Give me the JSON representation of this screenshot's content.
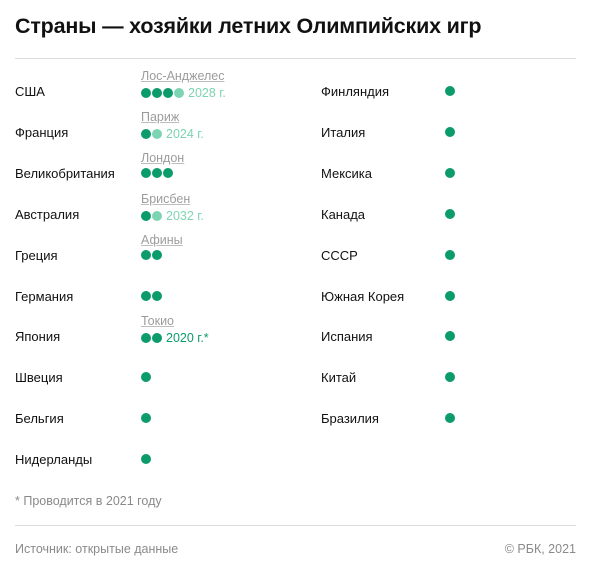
{
  "colors": {
    "past_dot": "#0c9b6a",
    "future_dot": "#7dd4b2",
    "city_text": "#9c9c9c",
    "footer_text": "#8a8a8a"
  },
  "chart_data": {
    "type": "table",
    "title": "Страны — хозяйки летних Олимпийских игр",
    "left_column": [
      {
        "country": "США",
        "count": 4,
        "upcoming": {
          "city": "Лос-Анджелес",
          "year": "2028 г.",
          "status": "future"
        }
      },
      {
        "country": "Франция",
        "count": 2,
        "upcoming": {
          "city": "Париж",
          "year": "2024 г.",
          "status": "future"
        }
      },
      {
        "country": "Великобритания",
        "count": 3,
        "upcoming": {
          "city": "Лондон",
          "year": "",
          "status": "none"
        }
      },
      {
        "country": "Австралия",
        "count": 2,
        "upcoming": {
          "city": "Брисбен",
          "year": "2032 г.",
          "status": "future"
        }
      },
      {
        "country": "Греция",
        "count": 2,
        "upcoming": {
          "city": "Афины",
          "year": "",
          "status": "none"
        }
      },
      {
        "country": "Германия",
        "count": 2,
        "upcoming": null
      },
      {
        "country": "Япония",
        "count": 2,
        "upcoming": {
          "city": "Токио",
          "year": "2020 г.*",
          "status": "current"
        }
      },
      {
        "country": "Швеция",
        "count": 1,
        "upcoming": null
      },
      {
        "country": "Бельгия",
        "count": 1,
        "upcoming": null
      },
      {
        "country": "Нидерланды",
        "count": 1,
        "upcoming": null
      }
    ],
    "right_column": [
      {
        "country": "Финляндия",
        "count": 1
      },
      {
        "country": "Италия",
        "count": 1
      },
      {
        "country": "Мексика",
        "count": 1
      },
      {
        "country": "Канада",
        "count": 1
      },
      {
        "country": "СССР",
        "count": 1
      },
      {
        "country": "Южная Корея",
        "count": 1
      },
      {
        "country": "Испания",
        "count": 1
      },
      {
        "country": "Китай",
        "count": 1
      },
      {
        "country": "Бразилия",
        "count": 1
      }
    ],
    "footnote": "* Проводится в 2021 году",
    "source": "Источник: открытые данные",
    "copyright": "© РБК, 2021"
  }
}
